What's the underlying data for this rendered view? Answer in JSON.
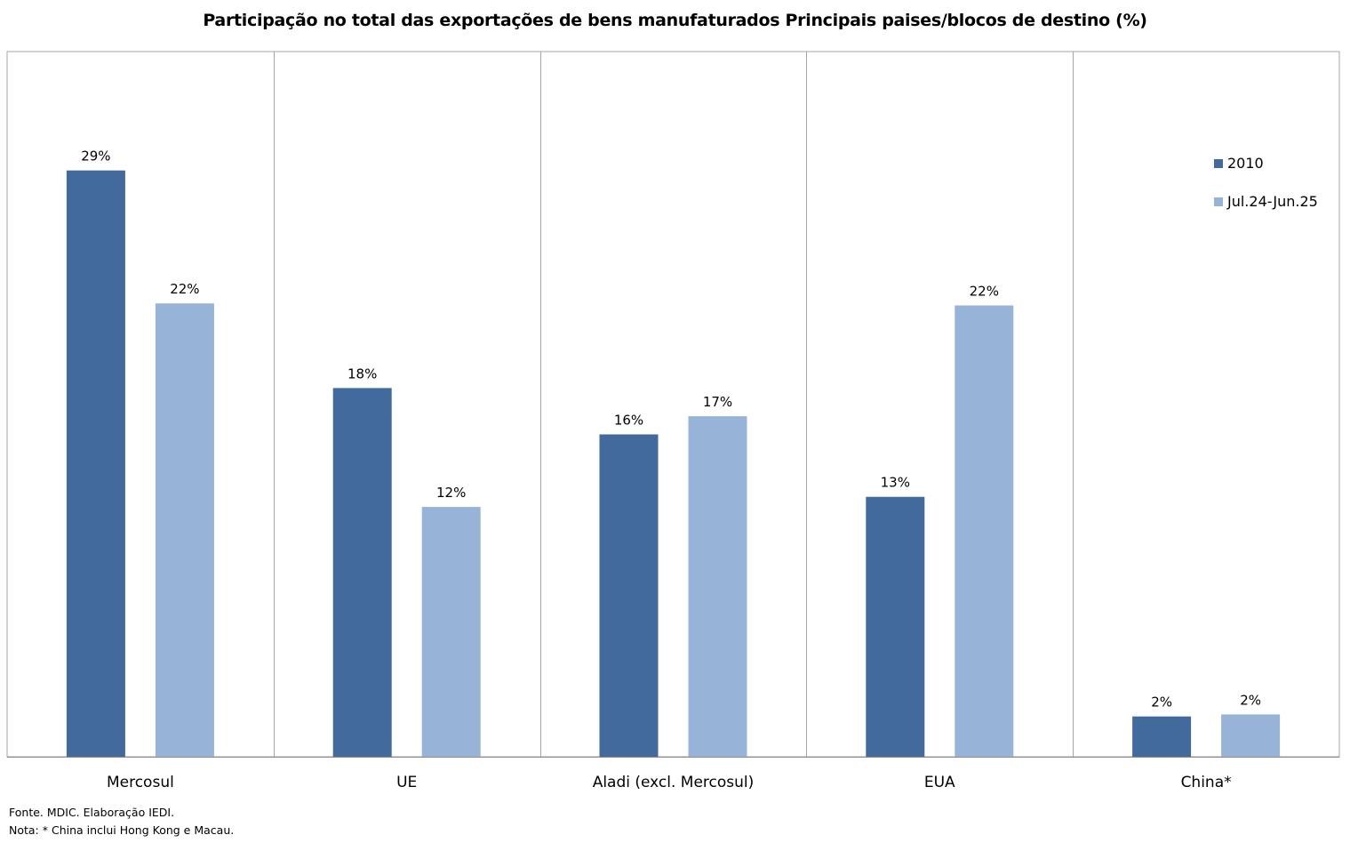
{
  "chart_data": {
    "type": "bar",
    "title": "Participação no total das exportações de bens manufaturados Principais paises/blocos de destino (%)",
    "categories": [
      "Mercosul",
      "UE",
      "Aladi (excl. Mercosul)",
      "EUA",
      "China*"
    ],
    "series": [
      {
        "name": "2010",
        "color": "#426a9c",
        "values": [
          29.1,
          18.3,
          16.0,
          12.9,
          2.0
        ],
        "labels": [
          "29%",
          "18%",
          "16%",
          "13%",
          "2%"
        ]
      },
      {
        "name": "Jul.24-Jun.25",
        "color": "#97b4d8",
        "values": [
          22.5,
          12.4,
          16.9,
          22.4,
          2.1
        ],
        "labels": [
          "22%",
          "12%",
          "17%",
          "22%",
          "2%"
        ]
      }
    ],
    "ylim": [
      0,
      35
    ],
    "grid": false,
    "legend": "top-right"
  },
  "footnotes": {
    "fonte": "Fonte. MDIC. Elaboração IEDI.",
    "nota": "Nota: * China inclui Hong Kong e Macau."
  }
}
